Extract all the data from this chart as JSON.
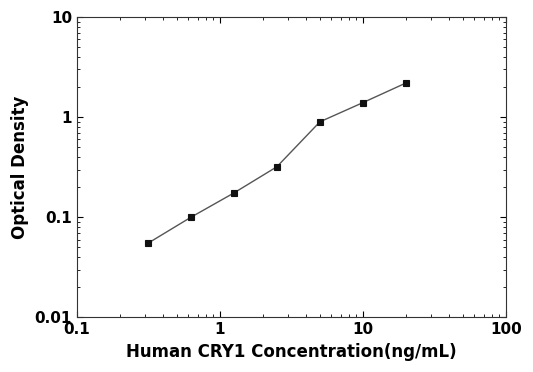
{
  "x_values": [
    0.313,
    0.625,
    1.25,
    2.5,
    5,
    10,
    20
  ],
  "y_values": [
    0.055,
    0.1,
    0.175,
    0.32,
    0.9,
    1.4,
    2.2
  ],
  "xlabel": "Human CRY1 Concentration(ng/mL)",
  "ylabel": "Optical Density",
  "xlim": [
    0.1,
    100
  ],
  "ylim": [
    0.01,
    10
  ],
  "line_color": "#555555",
  "marker_color": "#111111",
  "marker": "s",
  "marker_size": 5,
  "line_width": 1.0,
  "xlabel_fontsize": 12,
  "ylabel_fontsize": 12,
  "tick_fontsize": 11,
  "background_color": "#ffffff",
  "xtick_major": [
    0.1,
    1,
    10,
    100
  ],
  "ytick_major": [
    0.01,
    0.1,
    1,
    10
  ],
  "xtick_labels": [
    "0.1",
    "1",
    "10",
    "100"
  ],
  "ytick_labels": [
    "0.01",
    "0.1",
    "1",
    "10"
  ]
}
